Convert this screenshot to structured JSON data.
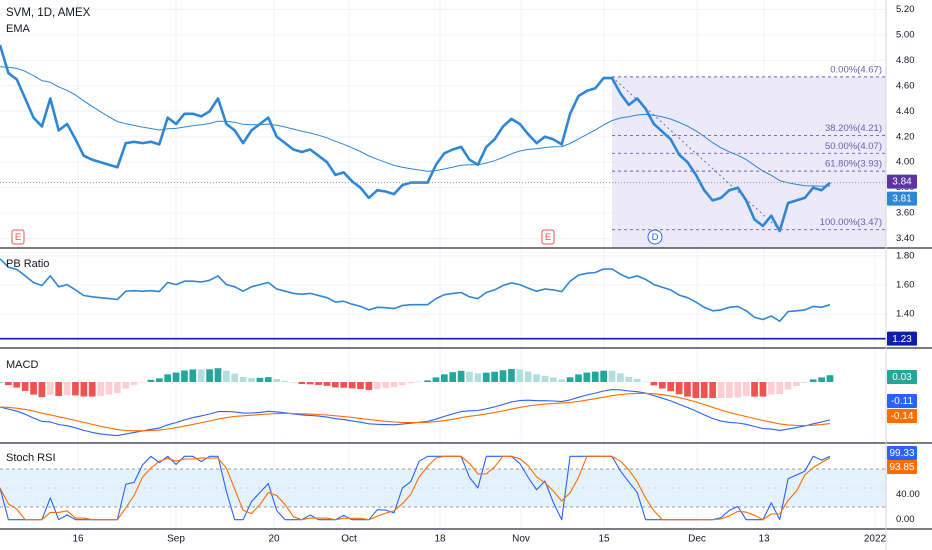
{
  "header": {
    "title": "SVM, 1D, AMEX",
    "indicator": "EMA"
  },
  "panes": {
    "pb_label": "PB Ratio",
    "macd_label": "MACD",
    "rsi_label": "Stoch RSI"
  },
  "time_axis": [
    "16",
    "Sep",
    "20",
    "Oct",
    "18",
    "Nov",
    "15",
    "Dec",
    "13",
    "2022"
  ],
  "colors": {
    "price": "#2e86d6",
    "ema": "#2e86d6",
    "fib": "#6a5fb0",
    "fib_fill": "#e9e5f7",
    "hist_up_strong": "#26a69a",
    "hist_up_weak": "#b2dfdb",
    "hist_down_strong": "#ef5350",
    "hist_down_weak": "#ffcdd2",
    "macd_line": "#2962ff",
    "signal_line": "#ff6d00",
    "rsi_k": "#2962ff",
    "rsi_d": "#ff6d00",
    "rsi_band": "#e3f2fd",
    "pb_level": "#0d1ea8",
    "earnings": "#ef5350",
    "dividend": "#2962ff",
    "last_price_tag": "#5b34a3"
  },
  "chart_data": [
    {
      "type": "line",
      "title": "SVM, 1D, AMEX",
      "series_name": "EMA",
      "ylim": [
        3.35,
        5.25
      ],
      "y_ticks": [
        "5.20",
        "5.00",
        "4.80",
        "4.60",
        "4.40",
        "4.20",
        "4.00",
        "3.80",
        "3.60",
        "3.40"
      ],
      "price": [
        4.92,
        4.7,
        4.65,
        4.5,
        4.35,
        4.28,
        4.5,
        4.25,
        4.3,
        4.18,
        4.05,
        4.02,
        4.0,
        3.98,
        3.96,
        4.15,
        4.16,
        4.15,
        4.16,
        4.14,
        4.35,
        4.3,
        4.38,
        4.38,
        4.36,
        4.4,
        4.5,
        4.3,
        4.25,
        4.15,
        4.25,
        4.3,
        4.35,
        4.2,
        4.15,
        4.1,
        4.08,
        4.1,
        4.05,
        4.0,
        3.9,
        3.92,
        3.85,
        3.8,
        3.72,
        3.78,
        3.77,
        3.75,
        3.82,
        3.84,
        3.84,
        3.84,
        3.98,
        4.07,
        4.1,
        4.12,
        4.02,
        3.98,
        4.12,
        4.18,
        4.28,
        4.34,
        4.3,
        4.22,
        4.15,
        4.2,
        4.18,
        4.14,
        4.38,
        4.52,
        4.56,
        4.58,
        4.66,
        4.66,
        4.54,
        4.45,
        4.5,
        4.42,
        4.3,
        4.24,
        4.18,
        4.06,
        4.0,
        3.9,
        3.78,
        3.7,
        3.72,
        3.78,
        3.8,
        3.7,
        3.55,
        3.5,
        3.58,
        3.46,
        3.68,
        3.7,
        3.72,
        3.8,
        3.78,
        3.84
      ],
      "ema_end": 3.81,
      "last_price": "3.84",
      "ema_last": "3.81",
      "fib_retracement": [
        {
          "label": "0.00%(4.67)",
          "value": 4.67
        },
        {
          "label": "38.20%(4.21)",
          "value": 4.21
        },
        {
          "label": "50.00%(4.07)",
          "value": 4.07
        },
        {
          "label": "61.80%(3.93)",
          "value": 3.93
        },
        {
          "label": "100.00%(3.47)",
          "value": 3.47
        }
      ],
      "markers": [
        {
          "type": "earnings",
          "label": "E"
        },
        {
          "type": "earnings",
          "label": "E"
        },
        {
          "type": "dividend",
          "label": "D"
        }
      ]
    },
    {
      "type": "line",
      "title": "PB Ratio",
      "ylim": [
        1.2,
        1.82
      ],
      "y_ticks": [
        "1.80",
        "1.60",
        "1.40"
      ],
      "level_value": 1.23,
      "level_label": "1.23"
    },
    {
      "type": "bar",
      "title": "MACD",
      "histogram_last": "0.03",
      "macd_last": "-0.11",
      "signal_last": "-0.14"
    },
    {
      "type": "line",
      "title": "Stoch RSI",
      "ylim": [
        -10,
        110
      ],
      "y_ticks": [
        "40.00",
        "0.00"
      ],
      "band": [
        20,
        80
      ],
      "k_last": "99.33",
      "d_last": "93.85"
    }
  ]
}
